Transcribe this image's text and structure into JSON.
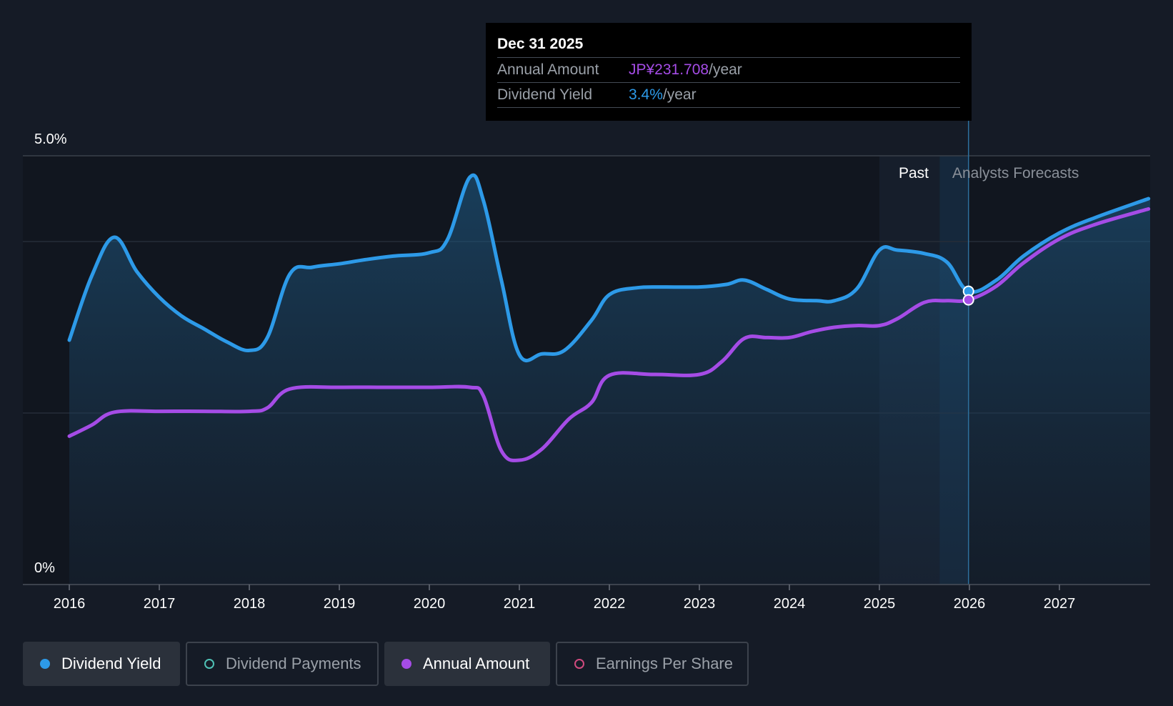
{
  "tooltip": {
    "date": "Dec 31 2025",
    "annual_label": "Annual Amount",
    "annual_value": "JP¥231.708",
    "annual_unit": "/year",
    "yield_label": "Dividend Yield",
    "yield_value": "3.4%",
    "yield_unit": "/year"
  },
  "regions": {
    "past": "Past",
    "forecast": "Analysts Forecasts"
  },
  "legend": [
    {
      "label": "Dividend Yield",
      "color": "#2d9ae8",
      "active": true,
      "icon": "filled-dot-icon"
    },
    {
      "label": "Dividend Payments",
      "color": "#4fc1b5",
      "active": false,
      "icon": "hollow-dot-icon"
    },
    {
      "label": "Annual Amount",
      "color": "#a54ce6",
      "active": true,
      "icon": "filled-dot-icon"
    },
    {
      "label": "Earnings Per Share",
      "color": "#d04a7e",
      "active": false,
      "icon": "hollow-dot-icon"
    }
  ],
  "colors": {
    "yield": "#2d9ae8",
    "annual": "#a54ce6",
    "background": "#151b26",
    "tooltip_bg": "#000000"
  },
  "chart_data": {
    "type": "line",
    "ylim": [
      0,
      5.0
    ],
    "y_tick_labels": [
      "0%",
      "5.0%"
    ],
    "x_tick_labels": [
      "2016",
      "2017",
      "2018",
      "2019",
      "2020",
      "2021",
      "2022",
      "2023",
      "2024",
      "2025",
      "2026",
      "2027"
    ],
    "xlim": [
      2016,
      2027.99
    ],
    "forecast_start": 2025.99,
    "grid": true,
    "series": [
      {
        "name": "Dividend Yield",
        "unit": "%",
        "x": [
          2016.0,
          2016.25,
          2016.5,
          2016.75,
          2017.0,
          2017.25,
          2017.5,
          2017.75,
          2018.0,
          2018.2,
          2018.45,
          2018.7,
          2019.0,
          2019.3,
          2019.6,
          2020.0,
          2020.2,
          2020.45,
          2020.6,
          2020.8,
          2021.0,
          2021.25,
          2021.5,
          2021.8,
          2022.0,
          2022.3,
          2022.6,
          2023.0,
          2023.3,
          2023.5,
          2023.75,
          2024.0,
          2024.3,
          2024.5,
          2024.75,
          2025.0,
          2025.2,
          2025.5,
          2025.75,
          2025.99,
          2026.3,
          2026.6,
          2027.0,
          2027.4,
          2027.99
        ],
        "values": [
          2.85,
          3.6,
          4.05,
          3.65,
          3.35,
          3.13,
          2.98,
          2.83,
          2.73,
          2.88,
          3.62,
          3.7,
          3.74,
          3.79,
          3.83,
          3.87,
          4.02,
          4.75,
          4.48,
          3.55,
          2.68,
          2.69,
          2.73,
          3.08,
          3.38,
          3.46,
          3.47,
          3.47,
          3.5,
          3.55,
          3.44,
          3.33,
          3.31,
          3.31,
          3.45,
          3.9,
          3.9,
          3.86,
          3.76,
          3.42,
          3.55,
          3.83,
          4.1,
          4.28,
          4.5
        ]
      },
      {
        "name": "Annual Amount",
        "unit": "JP¥",
        "x": [
          2016.0,
          2016.25,
          2016.5,
          2017.0,
          2017.5,
          2018.0,
          2018.2,
          2018.45,
          2019.0,
          2019.5,
          2020.0,
          2020.45,
          2020.6,
          2020.8,
          2021.0,
          2021.25,
          2021.55,
          2021.8,
          2022.0,
          2022.5,
          2023.0,
          2023.25,
          2023.5,
          2023.75,
          2024.0,
          2024.25,
          2024.5,
          2024.75,
          2025.0,
          2025.2,
          2025.5,
          2025.75,
          2025.99,
          2026.3,
          2026.6,
          2027.0,
          2027.4,
          2027.99
        ],
        "values": [
          1.73,
          1.86,
          2.01,
          2.02,
          2.02,
          2.02,
          2.06,
          2.28,
          2.3,
          2.3,
          2.3,
          2.3,
          2.2,
          1.56,
          1.45,
          1.58,
          1.93,
          2.12,
          2.44,
          2.45,
          2.45,
          2.6,
          2.87,
          2.88,
          2.88,
          2.95,
          3.0,
          3.02,
          3.02,
          3.1,
          3.29,
          3.31,
          3.32,
          3.48,
          3.75,
          4.03,
          4.2,
          4.38
        ]
      }
    ]
  }
}
